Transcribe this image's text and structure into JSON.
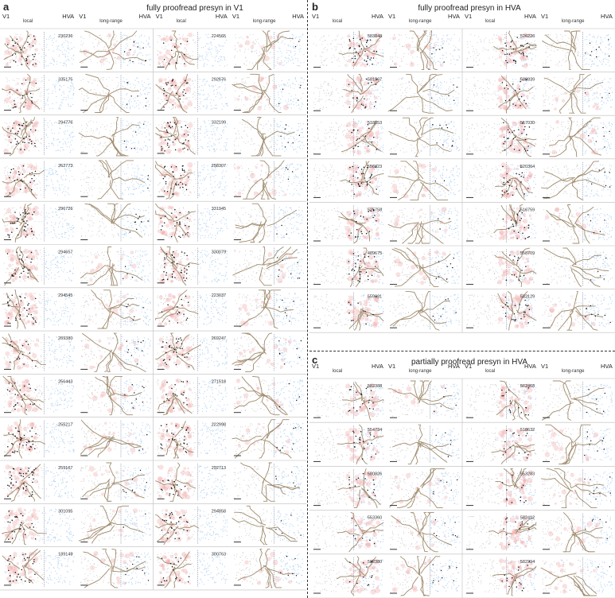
{
  "panels": {
    "a": {
      "letter": "a",
      "title": "fully proofread presyn in V1",
      "columns": [
        {
          "left": "V1",
          "middle": "local",
          "right": "HVA"
        },
        {
          "left": "V1",
          "middle": "long-range",
          "right": "HVA"
        },
        {
          "left": "V1",
          "middle": "local",
          "right": "HVA"
        },
        {
          "left": "V1",
          "middle": "long-range",
          "right": "HVA"
        }
      ],
      "cells_left": [
        "230236",
        "335175",
        "294776",
        "262773",
        "296726",
        "294657",
        "294545",
        "269380",
        "256443",
        "255217",
        "259167",
        "301095",
        "189149"
      ],
      "cells_right": [
        "224565",
        "292676",
        "332199",
        "258307",
        "331945",
        "330079",
        "223037",
        "269247",
        "271518",
        "222998",
        "292713",
        "294858",
        "300763"
      ]
    },
    "b": {
      "letter": "b",
      "title": "fully proofread presyn in HVA",
      "columns": [
        {
          "left": "V1",
          "middle": "local",
          "right": "HVA"
        },
        {
          "left": "V1",
          "middle": "long-range",
          "right": "HVA"
        },
        {
          "left": "V1",
          "middle": "local",
          "right": "HVA"
        },
        {
          "left": "V1",
          "middle": "long-range",
          "right": "HVA"
        }
      ],
      "cells_left": [
        "583848",
        "581967",
        "518853",
        "556823",
        "525758",
        "489675",
        "559081"
      ],
      "cells_right": [
        "526226",
        "588839",
        "557030",
        "520364",
        "516759",
        "558709",
        "582129"
      ]
    },
    "c": {
      "letter": "c",
      "title": "partially proofread presyn in HVA",
      "columns": [
        {
          "left": "V1",
          "middle": "local",
          "right": "HVA"
        },
        {
          "left": "V1",
          "middle": "long-range",
          "right": "HVA"
        },
        {
          "left": "V1",
          "middle": "local",
          "right": "HVA"
        },
        {
          "left": "V1",
          "middle": "long-range",
          "right": "HVA"
        }
      ],
      "cells_left": [
        "582388",
        "554734",
        "580826",
        "553360",
        "582380"
      ],
      "cells_right": [
        "582468",
        "518632",
        "553283",
        "582412",
        "582294"
      ]
    }
  },
  "colors": {
    "v1_cells": "#bdbdbd",
    "hva_cells": "#a9cdef",
    "dendrite": "#f2a8a8",
    "axon": "#a08c6e",
    "synapse": "#111111",
    "boundary": "#7f8fa6",
    "grid": "#bcbcbc"
  }
}
